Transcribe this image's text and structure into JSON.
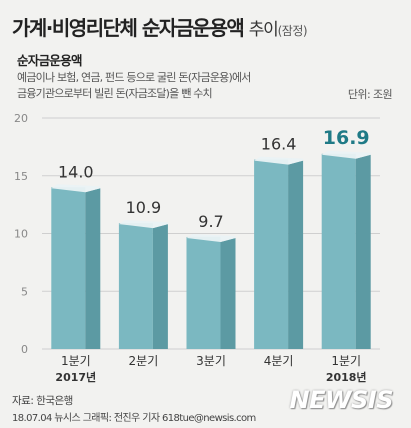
{
  "title": {
    "main": "가계·비영리단체 순자금운용액",
    "sub": "추이",
    "note": "(잠정)"
  },
  "subtitle": "순자금운용액",
  "description": {
    "line1": "예금이나 보험, 연금, 펀드 등으로 굴린 돈(자금운용)에서",
    "line2": "금융기관으로부터 빌린 돈(자금조달)을 뺀 수치"
  },
  "unit_label": "단위: 조원",
  "source": "자료: 한국은행",
  "credit": "18.07.04 뉴시스 그래픽: 전진우 기자 618tue@newsis.com",
  "logo_text": "NEWSIS",
  "colors": {
    "bar_front": "#7bb8c1",
    "bar_side": "#5c9aa3",
    "bar_top": "#eaf2f4",
    "highlight_label": "#1f7a86",
    "normal_label": "#333333",
    "grid": "#cfcfcf",
    "tick": "#888888"
  },
  "chart_data": {
    "type": "bar",
    "categories": [
      "1분기",
      "2분기",
      "3분기",
      "4분기",
      "1분기"
    ],
    "year_labels": [
      "2017년",
      "",
      "",
      "",
      "2018년"
    ],
    "values": [
      14.0,
      10.9,
      9.7,
      16.4,
      16.9
    ],
    "value_labels": [
      "14.0",
      "10.9",
      "9.7",
      "16.4",
      "16.9"
    ],
    "highlight_index": 4,
    "ylim": [
      0,
      20
    ],
    "yticks": [
      0,
      5,
      10,
      15,
      20
    ],
    "grid": true
  }
}
